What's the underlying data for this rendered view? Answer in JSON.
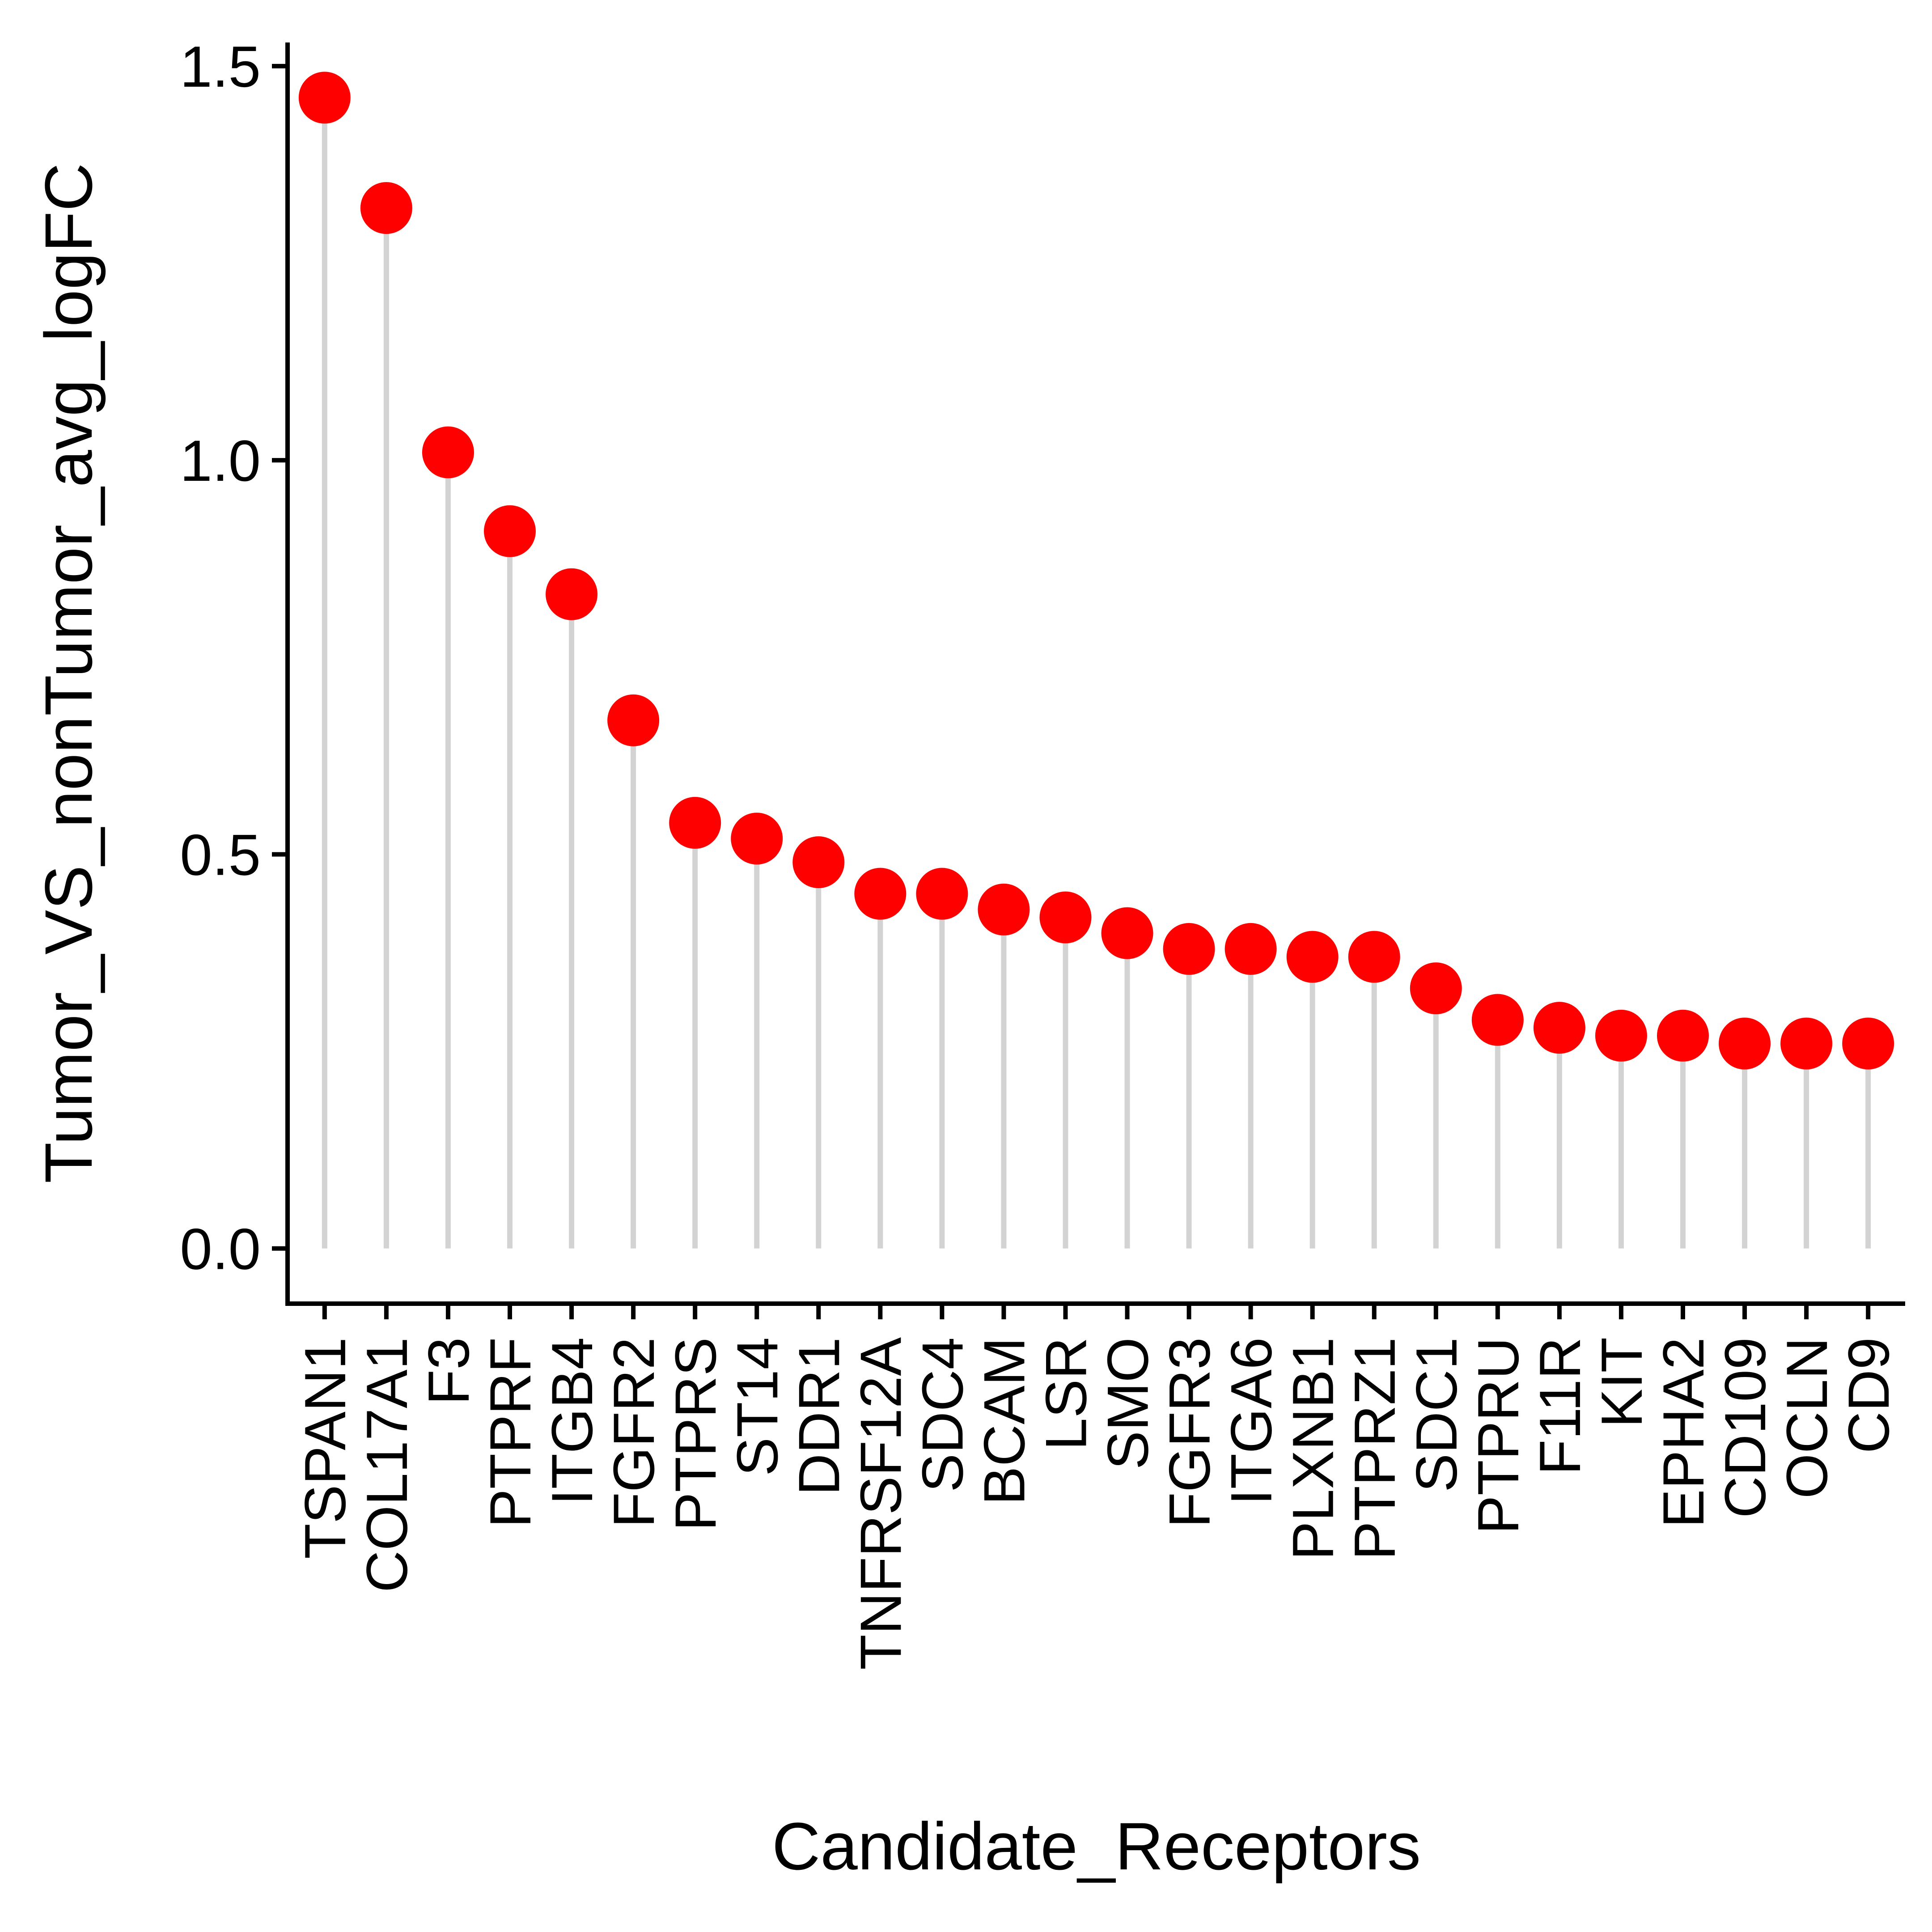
{
  "chart_data": {
    "type": "lollipop",
    "title": "",
    "xlabel": "Candidate_Receptors",
    "ylabel": "Tumor_VS_nonTumor_avg_logFC",
    "ylim": [
      -0.07,
      1.53
    ],
    "yticks": [
      0.0,
      0.5,
      1.0,
      1.5
    ],
    "ytick_labels": [
      "0.0",
      "0.5",
      "1.0",
      "1.5"
    ],
    "grid": false,
    "legend": "none",
    "categories": [
      "TSPAN1",
      "COL17A1",
      "F3",
      "PTPRF",
      "ITGB4",
      "FGFR2",
      "PTPRS",
      "ST14",
      "DDR1",
      "TNFRSF12A",
      "SDC4",
      "BCAM",
      "LSR",
      "SMO",
      "FGFR3",
      "ITGA6",
      "PLXNB1",
      "PTPRZ1",
      "SDC1",
      "PTPRU",
      "F11R",
      "KIT",
      "EPHA2",
      "CD109",
      "OCLN",
      "CD9"
    ],
    "values": [
      1.46,
      1.32,
      1.01,
      0.91,
      0.83,
      0.67,
      0.54,
      0.52,
      0.49,
      0.45,
      0.45,
      0.43,
      0.42,
      0.4,
      0.38,
      0.38,
      0.37,
      0.37,
      0.33,
      0.29,
      0.28,
      0.27,
      0.27,
      0.26,
      0.26,
      0.26
    ],
    "point_color": "#FF0000",
    "stem_color": "#D3D3D3"
  }
}
